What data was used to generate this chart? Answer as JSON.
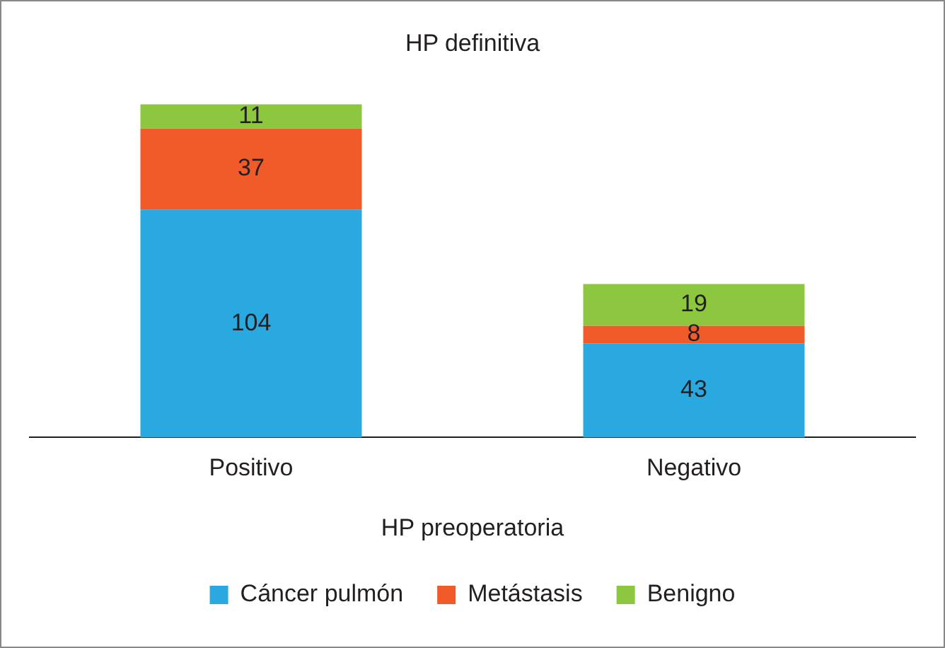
{
  "chart_data": {
    "type": "bar",
    "title": "HP definitiva",
    "xlabel": "HP preoperatoria",
    "categories": [
      "Positivo",
      "Negativo"
    ],
    "stacked": true,
    "data_labels": true,
    "legend": "bottom",
    "grid": false,
    "series": [
      {
        "name": "Cáncer pulmón",
        "color": "#29a9e0",
        "values": [
          104,
          43
        ]
      },
      {
        "name": "Metástasis",
        "color": "#f15a29",
        "values": [
          37,
          8
        ]
      },
      {
        "name": "Benigno",
        "color": "#8dc63f",
        "values": [
          11,
          19
        ]
      }
    ]
  }
}
